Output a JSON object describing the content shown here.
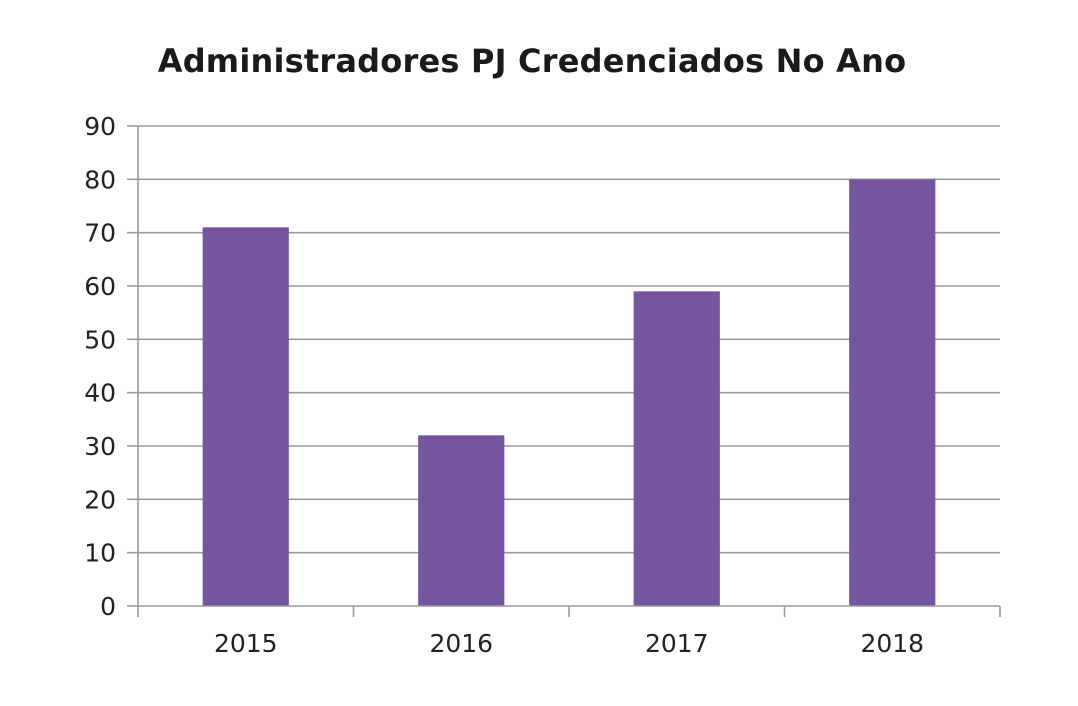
{
  "chart_data": {
    "type": "bar",
    "title": "Administradores PJ Credenciados No Ano",
    "categories": [
      "2015",
      "2016",
      "2017",
      "2018"
    ],
    "values": [
      71,
      32,
      59,
      80
    ],
    "xlabel": "",
    "ylabel": "",
    "ylim": [
      0,
      90
    ],
    "yticks": [
      0,
      10,
      20,
      30,
      40,
      50,
      60,
      70,
      80,
      90
    ],
    "grid": true,
    "legend": "none",
    "bar_color": "#7554a0"
  }
}
